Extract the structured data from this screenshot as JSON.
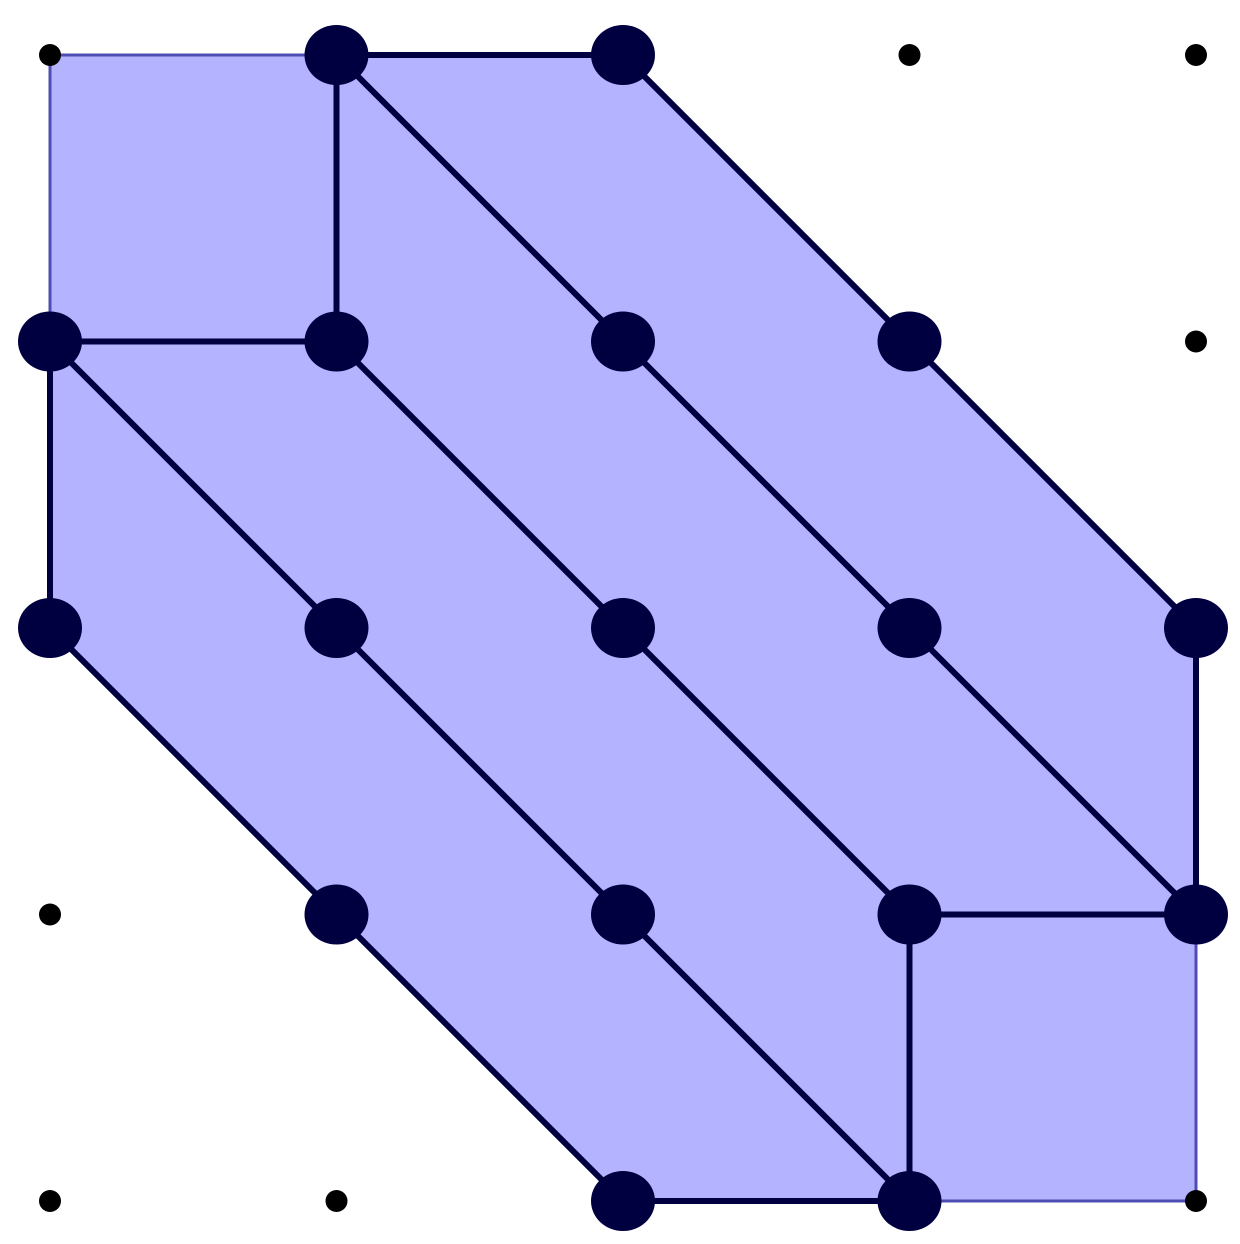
{
  "diagram": {
    "type": "lattice-polygon-subdivision",
    "grid": {
      "cols": 5,
      "rows": 5,
      "x_range": [
        0,
        4
      ],
      "y_range": [
        0,
        4
      ]
    },
    "colors": {
      "region_fill": "#b3b3ff",
      "region_border": "#4d4db3",
      "edge": "#000040",
      "vertex": "#000040",
      "lattice_point": "#000000",
      "background": "#ffffff"
    },
    "region": {
      "name": "polygon",
      "vertices": [
        [
          0,
          4
        ],
        [
          2,
          4
        ],
        [
          4,
          2
        ],
        [
          4,
          0
        ],
        [
          2,
          0
        ],
        [
          0,
          2
        ]
      ]
    },
    "edges": [
      {
        "name": "edge-top",
        "from": [
          1,
          4
        ],
        "to": [
          2,
          4
        ]
      },
      {
        "name": "edge-upper-right-diagonal",
        "from": [
          2,
          4
        ],
        "to": [
          4,
          2
        ]
      },
      {
        "name": "edge-right-upper",
        "from": [
          4,
          2
        ],
        "to": [
          4,
          1
        ]
      },
      {
        "name": "edge-bottom",
        "from": [
          2,
          0
        ],
        "to": [
          3,
          0
        ]
      },
      {
        "name": "edge-lower-left-diagonal",
        "from": [
          0,
          2
        ],
        "to": [
          2,
          0
        ]
      },
      {
        "name": "edge-left-lower",
        "from": [
          0,
          3
        ],
        "to": [
          0,
          2
        ]
      },
      {
        "name": "edge-inner-vertical-top",
        "from": [
          1,
          4
        ],
        "to": [
          1,
          3
        ]
      },
      {
        "name": "edge-inner-horizontal-top",
        "from": [
          0,
          3
        ],
        "to": [
          1,
          3
        ]
      },
      {
        "name": "edge-inner-vertical-bottom",
        "from": [
          3,
          1
        ],
        "to": [
          3,
          0
        ]
      },
      {
        "name": "edge-inner-horizontal-bottom",
        "from": [
          3,
          1
        ],
        "to": [
          4,
          1
        ]
      },
      {
        "name": "edge-diagonal-a",
        "from": [
          1,
          4
        ],
        "to": [
          4,
          1
        ]
      },
      {
        "name": "edge-diagonal-b",
        "from": [
          0,
          3
        ],
        "to": [
          3,
          0
        ]
      },
      {
        "name": "edge-diagonal-c",
        "from": [
          1,
          3
        ],
        "to": [
          3,
          1
        ]
      }
    ],
    "vertices": [
      [
        1,
        4
      ],
      [
        2,
        4
      ],
      [
        0,
        3
      ],
      [
        1,
        3
      ],
      [
        2,
        3
      ],
      [
        3,
        3
      ],
      [
        0,
        2
      ],
      [
        1,
        2
      ],
      [
        2,
        2
      ],
      [
        3,
        2
      ],
      [
        4,
        2
      ],
      [
        1,
        1
      ],
      [
        2,
        1
      ],
      [
        3,
        1
      ],
      [
        4,
        1
      ],
      [
        2,
        0
      ],
      [
        3,
        0
      ]
    ],
    "lattice_points": [
      [
        0,
        4
      ],
      [
        3,
        4
      ],
      [
        4,
        4
      ],
      [
        4,
        3
      ],
      [
        0,
        1
      ],
      [
        0,
        0
      ],
      [
        1,
        0
      ],
      [
        4,
        0
      ]
    ]
  }
}
